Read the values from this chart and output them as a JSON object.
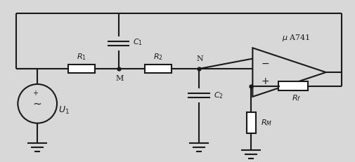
{
  "bg_color": "#d8d8d8",
  "line_color": "#1a1a1a",
  "line_width": 1.5,
  "fig_width": 5.05,
  "fig_height": 2.31
}
